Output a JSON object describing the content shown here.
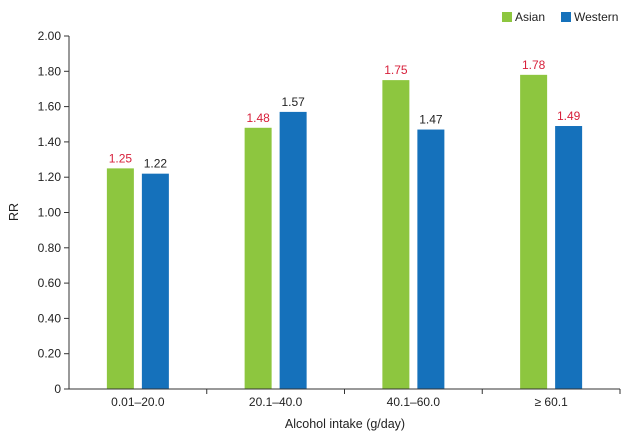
{
  "chart_data": {
    "type": "bar",
    "title": "",
    "xlabel": "Alcohol intake (g/day)",
    "ylabel": "RR",
    "categories": [
      "0.01–20.0",
      "20.1–40.0",
      "40.1–60.0",
      "≥ 60.1"
    ],
    "series": [
      {
        "name": "Asian",
        "color": "#8dc63f",
        "label_color": "#d71f3a",
        "values": [
          1.25,
          1.48,
          1.75,
          1.78
        ],
        "value_labels": [
          "1.25",
          "1.48",
          "1.75",
          "1.78"
        ]
      },
      {
        "name": "Western",
        "color": "#1571bb",
        "label_color": "#222222",
        "label_colors": [
          "#222222",
          "#222222",
          "#222222",
          "#d71f3a"
        ],
        "values": [
          1.22,
          1.57,
          1.47,
          1.49
        ],
        "value_labels": [
          "1.22",
          "1.57",
          "1.47",
          "1.49"
        ]
      }
    ],
    "ylim": [
      0,
      2.0
    ],
    "yticks": [
      0,
      0.2,
      0.4,
      0.6,
      0.8,
      1.0,
      1.2,
      1.4,
      1.6,
      1.8,
      2.0
    ],
    "ytick_labels": [
      "0",
      "0.20",
      "0.40",
      "0.60",
      "0.80",
      "1.00",
      "1.20",
      "1.40",
      "1.60",
      "1.80",
      "2.00"
    ],
    "grid": false,
    "legend_position": "top-right"
  }
}
